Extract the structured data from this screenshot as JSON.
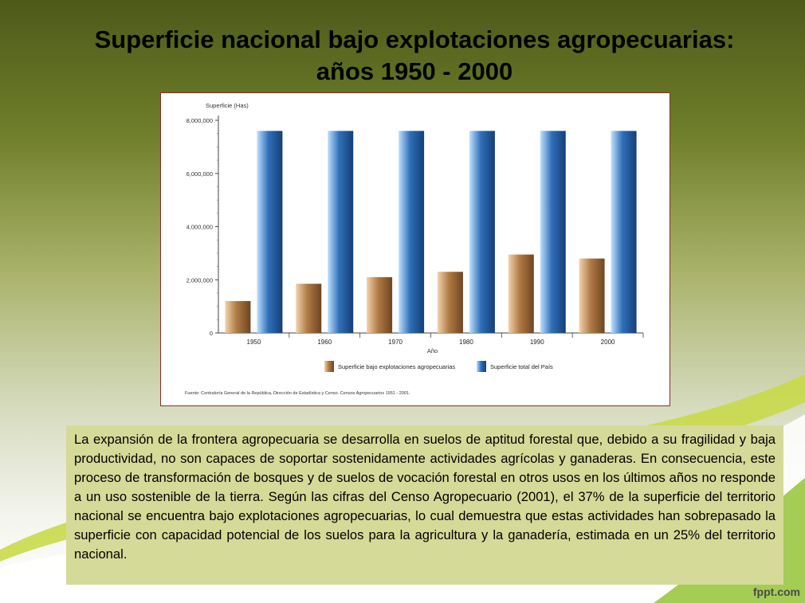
{
  "slide": {
    "title_line1": "Superficie nacional bajo explotaciones agropecuarias:",
    "title_line2": "años 1950 - 2000",
    "paragraph": "La expansión de la frontera agropecuaria se desarrolla en suelos de aptitud forestal que, debido a su fragilidad y baja productividad, no son capaces de soportar sostenidamente actividades agrícolas y ganaderas. En consecuencia, este proceso de transformación de bosques y de suelos de vocación forestal en otros usos en los últimos años no responde a un uso sostenible de la tierra. Según las cifras del Censo Agropecuario (2001), el 37% de la superficie del territorio nacional se encuentra bajo explotaciones agropecuarias, lo cual demuestra que estas actividades han sobrepasado la superficie con capacidad potencial de los suelos para la agricultura y la ganadería, estimada en un 25% del territorio nacional.",
    "brand": "fppt.com"
  },
  "colors": {
    "bar_agro": "#b07a45",
    "bar_total": "#2f6fb8",
    "frame": "#8a2f2f",
    "text_box_bg": "#d6da98"
  },
  "chart_data": {
    "type": "bar",
    "ylabel": "Superficie (Has)",
    "xlabel": "Año",
    "categories": [
      "1950",
      "1960",
      "1970",
      "1980",
      "1990",
      "2000"
    ],
    "series": [
      {
        "name": "Superficie bajo  explotaciones agropecuarias",
        "values": [
          1200000,
          1850000,
          2100000,
          2300000,
          2950000,
          2800000
        ]
      },
      {
        "name": "Superficie total del País",
        "values": [
          7600000,
          7600000,
          7600000,
          7600000,
          7600000,
          7600000
        ]
      }
    ],
    "ylim": [
      0,
      8000000
    ],
    "yticks": [
      "0",
      "2,000,000",
      "4,000,000",
      "6,000,000",
      "8,000,000"
    ],
    "ytick_values": [
      0,
      2000000,
      4000000,
      6000000,
      8000000
    ],
    "legend_position": "bottom",
    "source": "Fuente: Contraloría General de la República, Dirección de Estadística y Censo. Censos Agropecuarios 1951 - 2001."
  }
}
